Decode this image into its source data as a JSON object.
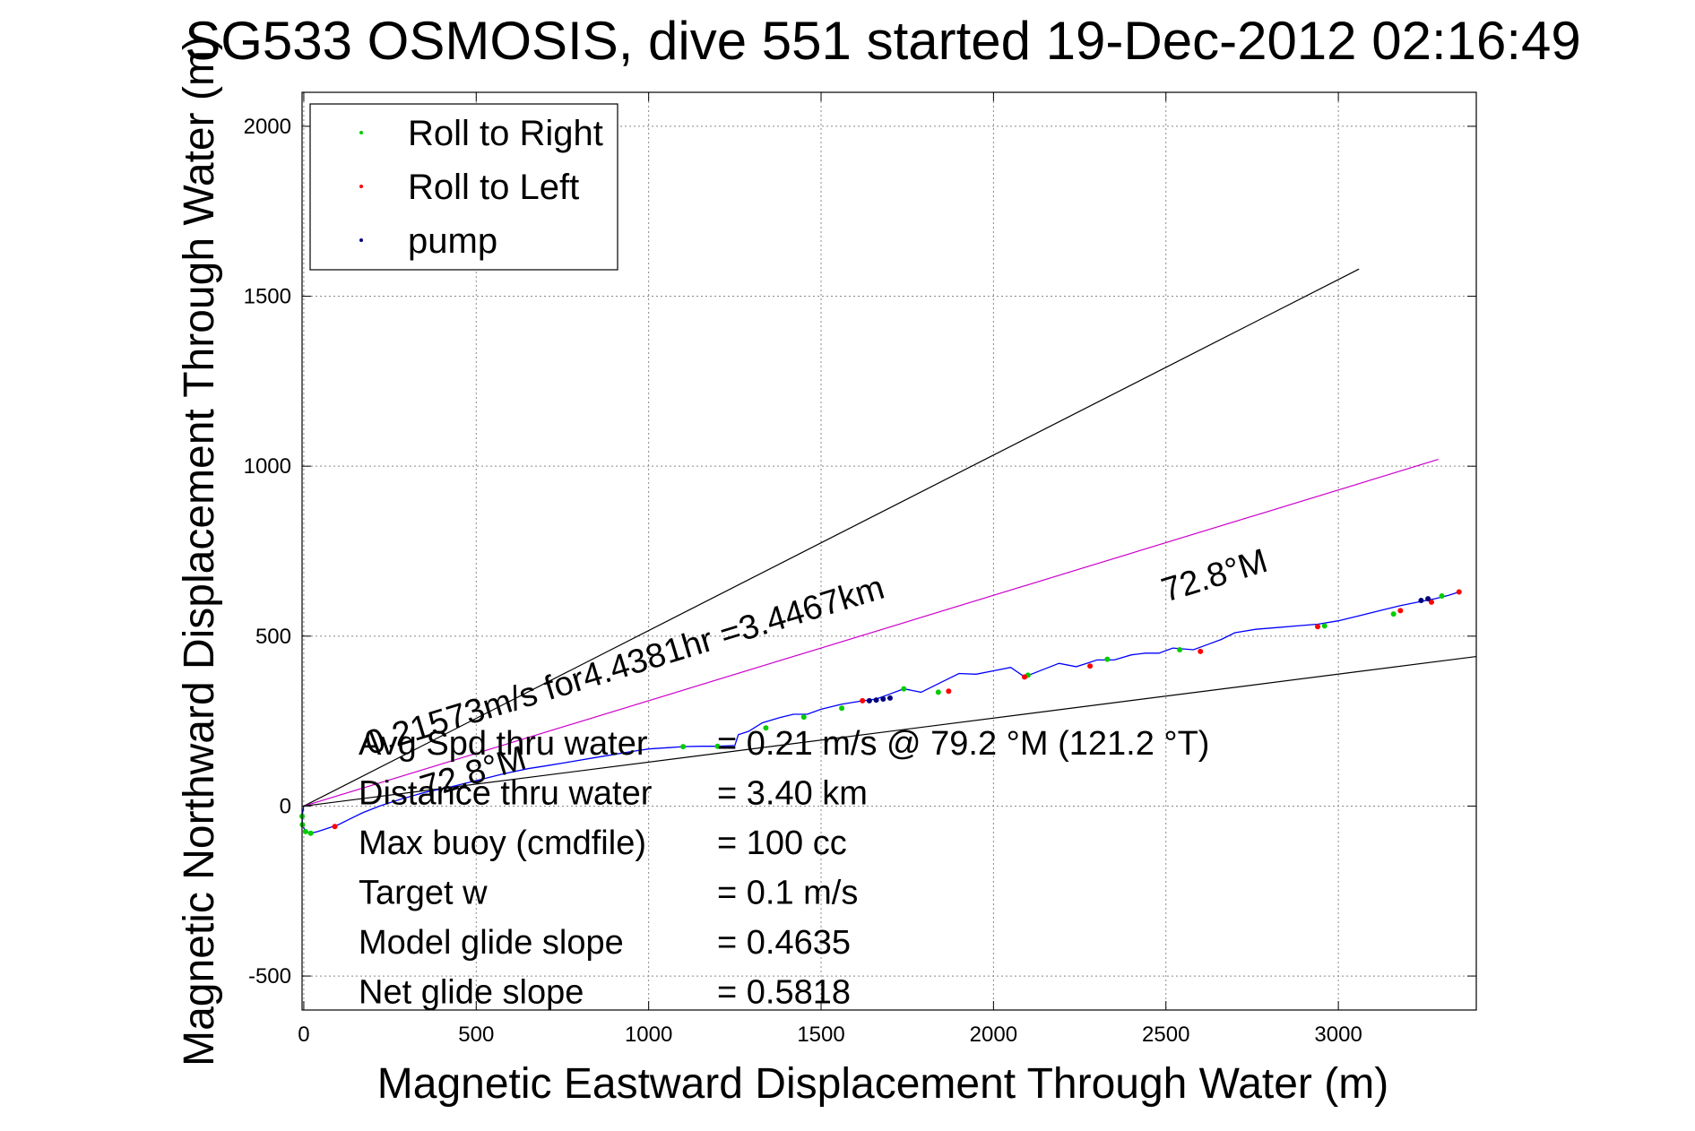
{
  "chart_data": {
    "type": "line",
    "title": "SG533 OSMOSIS, dive 551 started 19-Dec-2012 02:16:49",
    "xlabel": "Magnetic Eastward Displacement Through Water (m)",
    "ylabel": "Magnetic Northward Displacement Through Water (m)",
    "xlim": [
      -5,
      3400
    ],
    "ylim": [
      -600,
      2100
    ],
    "xticks": [
      0,
      500,
      1000,
      1500,
      2000,
      2500,
      3000
    ],
    "yticks": [
      -500,
      0,
      500,
      1000,
      1500,
      2000
    ],
    "grid": true,
    "legend": {
      "position": "top-left",
      "entries": [
        {
          "label": "Roll to Right",
          "color": "#00cc00"
        },
        {
          "label": "Roll to Left",
          "color": "#ff0000"
        },
        {
          "label": "pump",
          "color": "#000080"
        }
      ]
    },
    "track": {
      "color": "#0000ff",
      "x": [
        0,
        -5,
        -4,
        5,
        20,
        40,
        70,
        100,
        130,
        170,
        220,
        280,
        350,
        420,
        500,
        580,
        650,
        700,
        760,
        830,
        900,
        960,
        1000,
        1060,
        1100,
        1150,
        1200,
        1250,
        1260,
        1290,
        1330,
        1380,
        1420,
        1460,
        1500,
        1560,
        1610,
        1660,
        1700,
        1740,
        1790,
        1840,
        1870,
        1900,
        1950,
        2000,
        2050,
        2090,
        2140,
        2190,
        2240,
        2270,
        2300,
        2350,
        2400,
        2440,
        2480,
        2520,
        2580,
        2620,
        2660,
        2700,
        2760,
        2820,
        2880,
        2940,
        3000,
        3060,
        3120,
        3180,
        3230,
        3280,
        3320,
        3350
      ],
      "y": [
        0,
        -30,
        -55,
        -75,
        -80,
        -75,
        -65,
        -55,
        -40,
        -20,
        0,
        20,
        40,
        55,
        75,
        95,
        110,
        118,
        128,
        140,
        152,
        162,
        168,
        172,
        175,
        176,
        176,
        178,
        210,
        220,
        245,
        260,
        270,
        270,
        285,
        300,
        308,
        315,
        330,
        345,
        335,
        360,
        375,
        390,
        388,
        398,
        408,
        380,
        400,
        420,
        410,
        420,
        430,
        430,
        445,
        450,
        450,
        465,
        460,
        475,
        490,
        510,
        520,
        525,
        530,
        535,
        545,
        560,
        575,
        590,
        600,
        610,
        620,
        630
      ]
    },
    "roll_right_points": {
      "x": [
        -5,
        -4,
        5,
        20,
        1100,
        1200,
        1340,
        1450,
        1560,
        1740,
        1840,
        2100,
        2330,
        2540,
        2960,
        3160,
        3300
      ],
      "y": [
        -30,
        -55,
        -75,
        -80,
        175,
        176,
        230,
        262,
        288,
        345,
        335,
        385,
        432,
        460,
        530,
        565,
        618
      ]
    },
    "roll_left_points": {
      "x": [
        90,
        1620,
        1870,
        2090,
        2280,
        2600,
        2940,
        3180,
        3270,
        3350
      ],
      "y": [
        -60,
        310,
        338,
        380,
        412,
        455,
        528,
        575,
        600,
        630
      ]
    },
    "pump_points": {
      "x": [
        1640,
        1660,
        1680,
        1700,
        3240,
        3260
      ],
      "y": [
        310,
        312,
        315,
        318,
        605,
        610
      ]
    },
    "reference_lines": [
      {
        "name": "black-upper",
        "color": "#000000",
        "x": [
          0,
          3060
        ],
        "y": [
          0,
          1580
        ]
      },
      {
        "name": "magenta",
        "color": "#cc00cc",
        "x": [
          0,
          3290
        ],
        "y": [
          0,
          1020
        ]
      },
      {
        "name": "black-lower",
        "color": "#000000",
        "x": [
          0,
          3400
        ],
        "y": [
          0,
          440
        ]
      }
    ],
    "annotations": [
      {
        "text": "0.21573m/s for4.4381hr =3.4467km",
        "x": 190,
        "y": 150,
        "rotation_deg": -17
      },
      {
        "text": "72.8°M",
        "x": 2500,
        "y": 600,
        "rotation_deg": -17
      },
      {
        "text": "72.8°M",
        "x": 350,
        "y": 20,
        "rotation_deg": -17
      }
    ],
    "stats": [
      {
        "label": "Avg Spd thru water",
        "value": "=  0.21 m/s @  79.2 °M (121.2 °T)"
      },
      {
        "label": "Distance thru water",
        "value": "=  3.40 km"
      },
      {
        "label": "Max buoy (cmdfile)",
        "value": "= 100 cc"
      },
      {
        "label": "Target w",
        "value": "= 0.1 m/s"
      },
      {
        "label": "Model glide slope",
        "value": "= 0.4635"
      },
      {
        "label": "Net glide slope",
        "value": "= 0.5818"
      }
    ]
  }
}
